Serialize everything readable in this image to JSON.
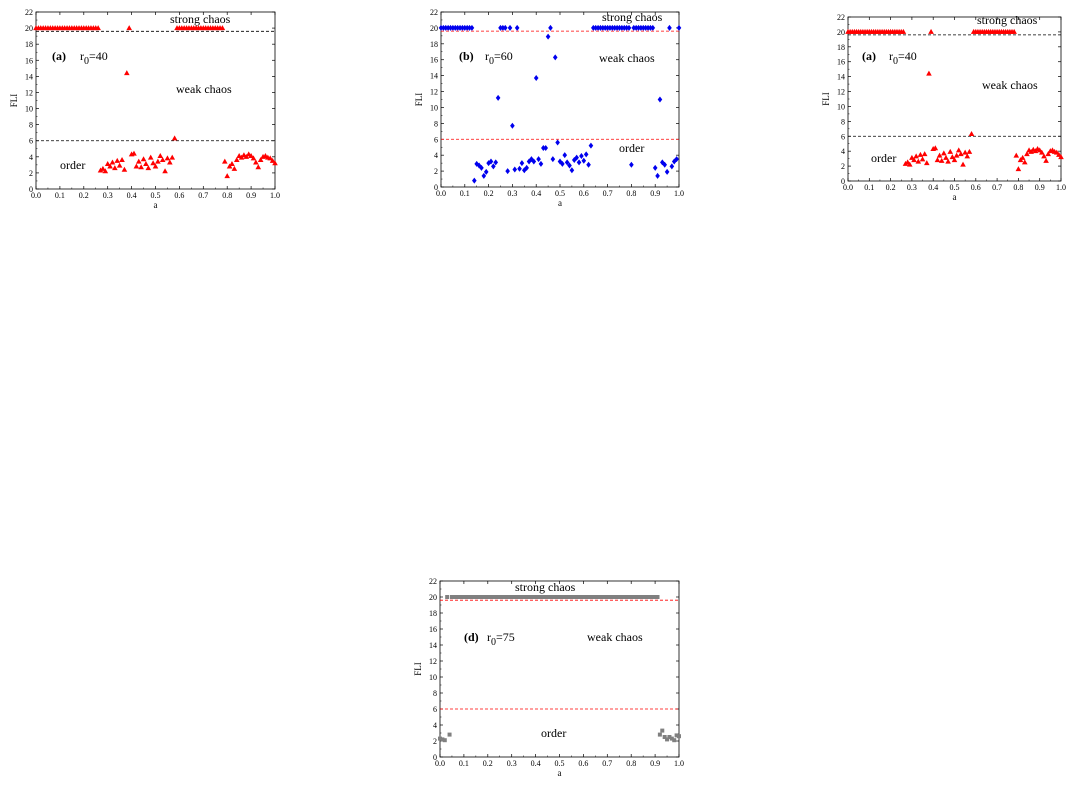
{
  "colors": {
    "red": "#ff0000",
    "blue": "#0000ee",
    "gray": "#808080",
    "black": "#000000"
  },
  "chart_data": [
    {
      "type": "scatter",
      "panel_label": "(a)",
      "param_text": "r",
      "param_sub": "0",
      "param_value": "=40",
      "xlabel": "a",
      "ylabel": "FLI",
      "xlim": [
        0,
        1.0
      ],
      "ylim": [
        0,
        22
      ],
      "xticks": [
        "0.0",
        "0.1",
        "0.2",
        "0.3",
        "0.4",
        "0.5",
        "0.6",
        "0.7",
        "0.8",
        "0.9",
        "1.0"
      ],
      "yticks": [
        "0",
        "2",
        "4",
        "6",
        "8",
        "10",
        "12",
        "14",
        "16",
        "18",
        "20",
        "22"
      ],
      "hlines": [
        {
          "y": 19.6,
          "style": "dashed",
          "color": "black"
        },
        {
          "y": 6.0,
          "style": "dashed",
          "color": "black"
        }
      ],
      "annotations": {
        "strong": "strong chaos",
        "weak": "weak chaos",
        "order": "order"
      },
      "marker": "triangle",
      "color": "red",
      "series": [
        {
          "x": [
            0.0,
            0.01,
            0.02,
            0.03,
            0.04,
            0.05,
            0.06,
            0.07,
            0.08,
            0.09,
            0.1,
            0.11,
            0.12,
            0.13,
            0.14,
            0.15,
            0.16,
            0.17,
            0.18,
            0.19,
            0.2,
            0.21,
            0.22,
            0.23,
            0.24,
            0.25,
            0.26,
            0.27,
            0.28,
            0.29,
            0.3,
            0.31,
            0.32,
            0.33,
            0.34,
            0.35,
            0.36,
            0.37,
            0.38,
            0.39,
            0.4,
            0.41,
            0.42,
            0.43,
            0.44,
            0.45,
            0.46,
            0.47,
            0.48,
            0.49,
            0.5,
            0.51,
            0.52,
            0.53,
            0.54,
            0.55,
            0.56,
            0.57,
            0.58,
            0.59,
            0.6,
            0.61,
            0.62,
            0.63,
            0.64,
            0.65,
            0.66,
            0.67,
            0.68,
            0.69,
            0.7,
            0.71,
            0.72,
            0.73,
            0.74,
            0.75,
            0.76,
            0.77,
            0.78,
            0.79,
            0.8,
            0.81,
            0.82,
            0.83,
            0.84,
            0.85,
            0.86,
            0.87,
            0.88,
            0.89,
            0.9,
            0.91,
            0.92,
            0.93,
            0.94,
            0.95,
            0.96,
            0.97,
            0.98,
            0.99,
            1.0
          ],
          "y": [
            20,
            20,
            20,
            20,
            20,
            20,
            20,
            20,
            20,
            20,
            20,
            20,
            20,
            20,
            20,
            20,
            20,
            20,
            20,
            20,
            20,
            20,
            20,
            20,
            20,
            20,
            20,
            2.3,
            2.5,
            2.2,
            3.1,
            2.8,
            3.3,
            2.6,
            3.5,
            2.9,
            3.6,
            2.4,
            14.4,
            20,
            4.3,
            4.4,
            2.8,
            3.4,
            2.7,
            3.7,
            3.1,
            2.6,
            3.9,
            3.2,
            2.8,
            3.4,
            4.1,
            3.6,
            2.2,
            3.8,
            3.3,
            3.9,
            6.3,
            20,
            20,
            20,
            20,
            20,
            20,
            20,
            20,
            20,
            20,
            20,
            20,
            20,
            20,
            20,
            20,
            20,
            20,
            20,
            20,
            3.4,
            1.6,
            2.8,
            3.1,
            2.5,
            3.6,
            4.1,
            3.9,
            4.2,
            4.0,
            4.3,
            4.1,
            3.8,
            3.3,
            2.7,
            3.6,
            4.0,
            4.1,
            3.9,
            3.8,
            3.5,
            3.2
          ]
        }
      ]
    },
    {
      "type": "scatter",
      "panel_label": "(b)",
      "param_text": "r",
      "param_sub": "0",
      "param_value": "=60",
      "xlabel": "a",
      "ylabel": "FLI",
      "xlim": [
        0,
        1.0
      ],
      "ylim": [
        0,
        22
      ],
      "xticks": [
        "0.0",
        "0.1",
        "0.2",
        "0.3",
        "0.4",
        "0.5",
        "0.6",
        "0.7",
        "0.8",
        "0.9",
        "1.0"
      ],
      "yticks": [
        "0",
        "2",
        "4",
        "6",
        "8",
        "10",
        "12",
        "14",
        "16",
        "18",
        "20",
        "22"
      ],
      "hlines": [
        {
          "y": 19.6,
          "style": "dashed",
          "color": "red"
        },
        {
          "y": 6.0,
          "style": "dashed",
          "color": "red"
        }
      ],
      "annotations": {
        "strong": "strong chaos",
        "weak": "weak chaos",
        "order": "order"
      },
      "marker": "diamond",
      "color": "blue",
      "series": [
        {
          "x": [
            0.0,
            0.01,
            0.02,
            0.03,
            0.04,
            0.05,
            0.06,
            0.07,
            0.08,
            0.09,
            0.1,
            0.11,
            0.12,
            0.13,
            0.14,
            0.15,
            0.16,
            0.17,
            0.18,
            0.19,
            0.2,
            0.21,
            0.22,
            0.23,
            0.24,
            0.25,
            0.26,
            0.27,
            0.28,
            0.29,
            0.3,
            0.31,
            0.32,
            0.33,
            0.34,
            0.35,
            0.36,
            0.37,
            0.38,
            0.39,
            0.4,
            0.41,
            0.42,
            0.43,
            0.44,
            0.45,
            0.46,
            0.47,
            0.48,
            0.49,
            0.5,
            0.51,
            0.52,
            0.53,
            0.54,
            0.55,
            0.56,
            0.57,
            0.58,
            0.59,
            0.6,
            0.61,
            0.62,
            0.63,
            0.64,
            0.65,
            0.66,
            0.67,
            0.68,
            0.69,
            0.7,
            0.71,
            0.72,
            0.73,
            0.74,
            0.75,
            0.76,
            0.77,
            0.78,
            0.79,
            0.8,
            0.81,
            0.82,
            0.83,
            0.84,
            0.85,
            0.86,
            0.87,
            0.88,
            0.89,
            0.9,
            0.91,
            0.92,
            0.93,
            0.94,
            0.95,
            0.96,
            0.97,
            0.98,
            0.99,
            1.0
          ],
          "y": [
            20,
            20,
            20,
            20,
            20,
            20,
            20,
            20,
            20,
            20,
            20,
            20,
            20,
            20,
            0.8,
            2.9,
            2.7,
            2.4,
            1.4,
            1.9,
            3.0,
            3.2,
            2.6,
            3.1,
            11.2,
            20,
            20,
            20,
            2.0,
            20,
            7.7,
            2.2,
            20,
            2.3,
            3.0,
            2.1,
            2.4,
            3.2,
            3.5,
            3.2,
            13.7,
            3.5,
            2.9,
            4.9,
            4.9,
            18.9,
            20,
            3.5,
            16.3,
            5.6,
            3.2,
            2.9,
            4.0,
            3.1,
            2.7,
            2.1,
            3.4,
            3.7,
            3.1,
            3.9,
            3.3,
            4.1,
            2.8,
            5.2,
            20,
            20,
            20,
            20,
            20,
            20,
            20,
            20,
            20,
            20,
            20,
            20,
            20,
            20,
            20,
            20,
            2.8,
            20,
            20,
            20,
            20,
            20,
            20,
            20,
            20,
            20,
            2.4,
            1.4,
            11.0,
            3.1,
            2.8,
            1.9,
            20,
            2.6,
            3.2,
            3.5,
            20
          ]
        }
      ]
    },
    {
      "type": "scatter",
      "panel_label": "(a)",
      "param_text": "r",
      "param_sub": "0",
      "param_value": "=40",
      "xlabel": "a",
      "ylabel": "FLI",
      "xlim": [
        0,
        1.0
      ],
      "ylim": [
        0,
        22
      ],
      "xticks": [
        "0.0",
        "0.1",
        "0.2",
        "0.3",
        "0.4",
        "0.5",
        "0.6",
        "0.7",
        "0.8",
        "0.9",
        "1.0"
      ],
      "yticks": [
        "0",
        "2",
        "4",
        "6",
        "8",
        "10",
        "12",
        "14",
        "16",
        "18",
        "20",
        "22"
      ],
      "hlines": [
        {
          "y": 19.6,
          "style": "dashed",
          "color": "black"
        },
        {
          "y": 6.0,
          "style": "dashed",
          "color": "black"
        }
      ],
      "annotations": {
        "strong": "strong chaos",
        "weak": "weak chaos",
        "order": "order"
      },
      "marker": "triangle",
      "color": "red",
      "series": [
        {
          "x": [
            0.0,
            0.01,
            0.02,
            0.03,
            0.04,
            0.05,
            0.06,
            0.07,
            0.08,
            0.09,
            0.1,
            0.11,
            0.12,
            0.13,
            0.14,
            0.15,
            0.16,
            0.17,
            0.18,
            0.19,
            0.2,
            0.21,
            0.22,
            0.23,
            0.24,
            0.25,
            0.26,
            0.27,
            0.28,
            0.29,
            0.3,
            0.31,
            0.32,
            0.33,
            0.34,
            0.35,
            0.36,
            0.37,
            0.38,
            0.39,
            0.4,
            0.41,
            0.42,
            0.43,
            0.44,
            0.45,
            0.46,
            0.47,
            0.48,
            0.49,
            0.5,
            0.51,
            0.52,
            0.53,
            0.54,
            0.55,
            0.56,
            0.57,
            0.58,
            0.59,
            0.6,
            0.61,
            0.62,
            0.63,
            0.64,
            0.65,
            0.66,
            0.67,
            0.68,
            0.69,
            0.7,
            0.71,
            0.72,
            0.73,
            0.74,
            0.75,
            0.76,
            0.77,
            0.78,
            0.79,
            0.8,
            0.81,
            0.82,
            0.83,
            0.84,
            0.85,
            0.86,
            0.87,
            0.88,
            0.89,
            0.9,
            0.91,
            0.92,
            0.93,
            0.94,
            0.95,
            0.96,
            0.97,
            0.98,
            0.99,
            1.0
          ],
          "y": [
            20,
            20,
            20,
            20,
            20,
            20,
            20,
            20,
            20,
            20,
            20,
            20,
            20,
            20,
            20,
            20,
            20,
            20,
            20,
            20,
            20,
            20,
            20,
            20,
            20,
            20,
            20,
            2.3,
            2.5,
            2.2,
            3.1,
            2.8,
            3.3,
            2.6,
            3.5,
            2.9,
            3.6,
            2.4,
            14.4,
            20,
            4.3,
            4.4,
            2.8,
            3.4,
            2.7,
            3.7,
            3.1,
            2.6,
            3.9,
            3.2,
            2.8,
            3.4,
            4.1,
            3.6,
            2.2,
            3.8,
            3.3,
            3.9,
            6.3,
            20,
            20,
            20,
            20,
            20,
            20,
            20,
            20,
            20,
            20,
            20,
            20,
            20,
            20,
            20,
            20,
            20,
            20,
            20,
            20,
            3.4,
            1.6,
            2.8,
            3.1,
            2.5,
            3.6,
            4.1,
            3.9,
            4.2,
            4.0,
            4.3,
            4.1,
            3.8,
            3.3,
            2.7,
            3.6,
            4.0,
            4.1,
            3.9,
            3.8,
            3.5,
            3.2
          ]
        }
      ]
    },
    {
      "type": "scatter",
      "panel_label": "(d)",
      "param_text": "r",
      "param_sub": "0",
      "param_value": "=75",
      "xlabel": "a",
      "ylabel": "FLI",
      "xlim": [
        0,
        1.0
      ],
      "ylim": [
        0,
        22
      ],
      "xticks": [
        "0.0",
        "0.1",
        "0.2",
        "0.3",
        "0.4",
        "0.5",
        "0.6",
        "0.7",
        "0.8",
        "0.9",
        "1.0"
      ],
      "yticks": [
        "0",
        "2",
        "4",
        "6",
        "8",
        "10",
        "12",
        "14",
        "16",
        "18",
        "20",
        "22"
      ],
      "hlines": [
        {
          "y": 19.6,
          "style": "dashed",
          "color": "red"
        },
        {
          "y": 6.0,
          "style": "dashed",
          "color": "red"
        }
      ],
      "annotations": {
        "strong": "strong   chaos",
        "weak": "weak  chaos",
        "order": "order"
      },
      "marker": "square",
      "color": "gray",
      "series": [
        {
          "x": [
            0.0,
            0.01,
            0.02,
            0.03,
            0.04,
            0.05,
            0.06,
            0.07,
            0.08,
            0.09,
            0.1,
            0.11,
            0.12,
            0.13,
            0.14,
            0.15,
            0.16,
            0.17,
            0.18,
            0.19,
            0.2,
            0.21,
            0.22,
            0.23,
            0.24,
            0.25,
            0.26,
            0.27,
            0.28,
            0.29,
            0.3,
            0.31,
            0.32,
            0.33,
            0.34,
            0.35,
            0.36,
            0.37,
            0.38,
            0.39,
            0.4,
            0.41,
            0.42,
            0.43,
            0.44,
            0.45,
            0.46,
            0.47,
            0.48,
            0.49,
            0.5,
            0.51,
            0.52,
            0.53,
            0.54,
            0.55,
            0.56,
            0.57,
            0.58,
            0.59,
            0.6,
            0.61,
            0.62,
            0.63,
            0.64,
            0.65,
            0.66,
            0.67,
            0.68,
            0.69,
            0.7,
            0.71,
            0.72,
            0.73,
            0.74,
            0.75,
            0.76,
            0.77,
            0.78,
            0.79,
            0.8,
            0.81,
            0.82,
            0.83,
            0.84,
            0.85,
            0.86,
            0.87,
            0.88,
            0.89,
            0.9,
            0.91,
            0.92,
            0.93,
            0.94,
            0.95,
            0.96,
            0.97,
            0.98,
            0.99,
            1.0
          ],
          "y": [
            2.3,
            2.2,
            2.1,
            20,
            2.8,
            20,
            20,
            20,
            20,
            20,
            20,
            20,
            20,
            20,
            20,
            20,
            20,
            20,
            20,
            20,
            20,
            20,
            20,
            20,
            20,
            20,
            20,
            20,
            20,
            20,
            20,
            20,
            20,
            20,
            20,
            20,
            20,
            20,
            20,
            20,
            20,
            20,
            20,
            20,
            20,
            20,
            20,
            20,
            20,
            20,
            20,
            20,
            20,
            20,
            20,
            20,
            20,
            20,
            20,
            20,
            20,
            20,
            20,
            20,
            20,
            20,
            20,
            20,
            20,
            20,
            20,
            20,
            20,
            20,
            20,
            20,
            20,
            20,
            20,
            20,
            20,
            20,
            20,
            20,
            20,
            20,
            20,
            20,
            20,
            20,
            20,
            20,
            2.8,
            3.3,
            2.5,
            2.2,
            2.5,
            2.3,
            2.1,
            2.7,
            2.6
          ]
        }
      ]
    }
  ]
}
